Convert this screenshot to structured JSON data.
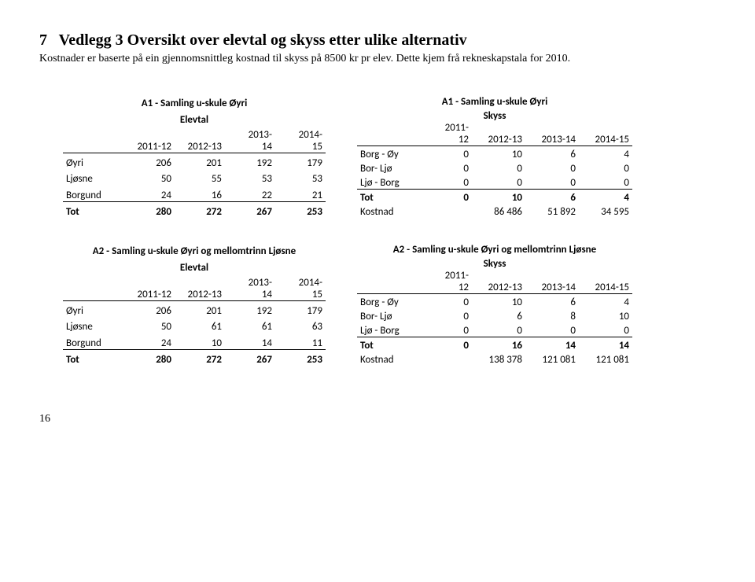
{
  "page": {
    "section_num": "7",
    "heading": "Vedlegg 3 Oversikt over elevtal og skyss etter ulike alternativ",
    "intro": "Kostnader er baserte på ein gjennomsnittleg kostnad til skyss på 8500 kr pr elev. Dette kjem frå rekneskapstala for 2010.",
    "page_number": "16"
  },
  "labels": {
    "elevtal": "Elevtal",
    "skyss": "Skyss",
    "tot": "Tot",
    "kostnad": "Kostnad"
  },
  "years": {
    "y1112": "2011-12",
    "y1213": "2012-13",
    "y1314_a": "2013-",
    "y1314_b": "14",
    "y1415_a": "2014-",
    "y1415_b": "15",
    "y1112_a": "2011-",
    "y1112_b": "12",
    "y1314": "2013-14",
    "y1415": "2014-15"
  },
  "a1": {
    "title_left": "A1 - Samling u-skule Øyri",
    "title_right": "A1 - Samling u-skule Øyri",
    "left": {
      "rows": [
        {
          "label": "Øyri",
          "v": [
            "206",
            "201",
            "192",
            "179"
          ]
        },
        {
          "label": "Ljøsne",
          "v": [
            "50",
            "55",
            "53",
            "53"
          ]
        },
        {
          "label": "Borgund",
          "v": [
            "24",
            "16",
            "22",
            "21"
          ]
        }
      ],
      "tot": [
        "280",
        "272",
        "267",
        "253"
      ]
    },
    "right": {
      "rows": [
        {
          "label": "Borg - Øy",
          "v": [
            "0",
            "10",
            "6",
            "4"
          ]
        },
        {
          "label": "Bor- Ljø",
          "v": [
            "0",
            "0",
            "0",
            "0"
          ]
        },
        {
          "label": "Ljø - Borg",
          "v": [
            "0",
            "0",
            "0",
            "0"
          ]
        }
      ],
      "tot": [
        "0",
        "10",
        "6",
        "4"
      ],
      "kostnad": [
        "86 486",
        "51 892",
        "34 595"
      ]
    }
  },
  "a2": {
    "title_left": "A2 - Samling u-skule Øyri og mellomtrinn Ljøsne",
    "title_right": "A2 - Samling u-skule Øyri og mellomtrinn Ljøsne",
    "left": {
      "rows": [
        {
          "label": "Øyri",
          "v": [
            "206",
            "201",
            "192",
            "179"
          ]
        },
        {
          "label": "Ljøsne",
          "v": [
            "50",
            "61",
            "61",
            "63"
          ]
        },
        {
          "label": "Borgund",
          "v": [
            "24",
            "10",
            "14",
            "11"
          ]
        }
      ],
      "tot": [
        "280",
        "272",
        "267",
        "253"
      ]
    },
    "right": {
      "rows": [
        {
          "label": "Borg - Øy",
          "v": [
            "0",
            "10",
            "6",
            "4"
          ]
        },
        {
          "label": "Bor- Ljø",
          "v": [
            "0",
            "6",
            "8",
            "10"
          ]
        },
        {
          "label": "Ljø - Borg",
          "v": [
            "0",
            "0",
            "0",
            "0"
          ]
        }
      ],
      "tot": [
        "0",
        "16",
        "14",
        "14"
      ],
      "kostnad": [
        "138 378",
        "121 081",
        "121 081"
      ]
    }
  }
}
